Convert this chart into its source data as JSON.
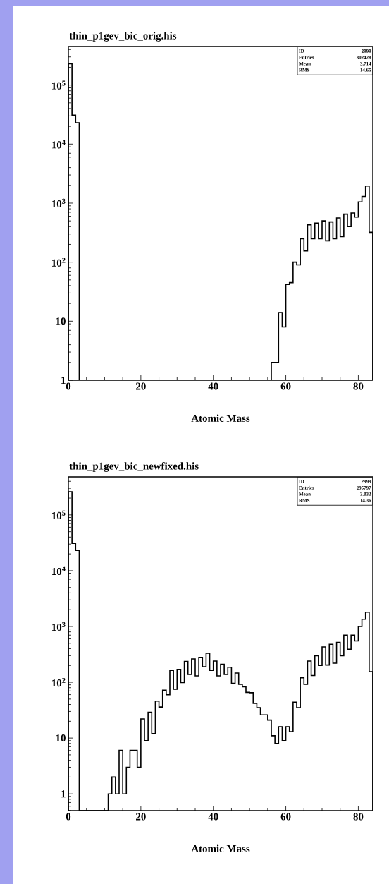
{
  "chart_data": [
    {
      "type": "histogram",
      "title": "thin_p1gev_bic_orig.his",
      "xlabel": "Atomic Mass",
      "color": "#000000",
      "log": true,
      "bins": [
        0,
        1,
        2,
        3,
        4,
        5,
        6,
        7,
        8,
        9,
        10,
        11,
        12,
        13,
        14,
        15,
        16,
        17,
        18,
        19,
        20,
        21,
        22,
        23,
        24,
        25,
        26,
        27,
        28,
        29,
        30,
        31,
        32,
        33,
        34,
        35,
        36,
        37,
        38,
        39,
        40,
        41,
        42,
        43,
        44,
        45,
        46,
        47,
        48,
        49,
        50,
        51,
        52,
        53,
        54,
        55,
        56,
        57,
        58,
        59,
        60,
        61,
        62,
        63,
        64,
        65,
        66,
        67,
        68,
        69,
        70,
        71,
        72,
        73,
        74,
        75,
        76,
        77,
        78,
        79,
        80,
        81,
        82,
        83,
        84
      ],
      "values": [
        230000,
        31000,
        23000,
        null,
        null,
        null,
        null,
        null,
        null,
        null,
        null,
        null,
        null,
        null,
        null,
        null,
        null,
        null,
        null,
        null,
        null,
        null,
        null,
        null,
        null,
        null,
        null,
        null,
        null,
        null,
        null,
        null,
        null,
        null,
        null,
        null,
        null,
        null,
        null,
        null,
        null,
        null,
        null,
        null,
        null,
        null,
        null,
        null,
        null,
        null,
        null,
        null,
        null,
        null,
        null,
        null,
        2,
        2,
        14,
        8,
        42,
        45,
        100,
        90,
        250,
        155,
        430,
        250,
        460,
        250,
        500,
        230,
        480,
        250,
        560,
        270,
        650,
        400,
        680,
        580,
        1050,
        1300,
        1950,
        320
      ],
      "xlim": [
        0,
        84
      ],
      "xticks": [
        0,
        20,
        40,
        60,
        80
      ],
      "ylim": [
        1,
        450000
      ],
      "yticks": [
        1,
        10,
        {
          "value": 100,
          "label": "10$^{2}$"
        },
        {
          "value": 1000,
          "label": "10$^{3}$"
        },
        {
          "value": 10000,
          "label": "10$^{4}$"
        },
        {
          "value": 100000,
          "label": "10$^{5}$"
        }
      ],
      "annotations": [
        "ID",
        "2999",
        "Entries",
        "302428",
        "Mean",
        "3.714",
        "RMS",
        "14.65"
      ]
    },
    {
      "type": "histogram",
      "title": "thin_p1gev_bic_newfixed.his",
      "xlabel": "Atomic Mass",
      "color": "#000000",
      "log": true,
      "bins": [
        0,
        1,
        2,
        3,
        4,
        5,
        6,
        7,
        8,
        9,
        10,
        11,
        12,
        13,
        14,
        15,
        16,
        17,
        18,
        19,
        20,
        21,
        22,
        23,
        24,
        25,
        26,
        27,
        28,
        29,
        30,
        31,
        32,
        33,
        34,
        35,
        36,
        37,
        38,
        39,
        40,
        41,
        42,
        43,
        44,
        45,
        46,
        47,
        48,
        49,
        50,
        51,
        52,
        53,
        54,
        55,
        56,
        57,
        58,
        59,
        60,
        61,
        62,
        63,
        64,
        65,
        66,
        67,
        68,
        69,
        70,
        71,
        72,
        73,
        74,
        75,
        76,
        77,
        78,
        79,
        80,
        81,
        82,
        83,
        84
      ],
      "values": [
        260000,
        31000,
        23000,
        null,
        null,
        null,
        null,
        null,
        null,
        null,
        null,
        1,
        2,
        1,
        6,
        1,
        3,
        6,
        6,
        3,
        22,
        9,
        29,
        12,
        46,
        36,
        72,
        60,
        164,
        75,
        170,
        99,
        237,
        138,
        262,
        130,
        280,
        190,
        330,
        164,
        240,
        130,
        210,
        138,
        186,
        96,
        146,
        92,
        83,
        66,
        65,
        42,
        35,
        26,
        26,
        21,
        11,
        8,
        16,
        9,
        16,
        13,
        44,
        35,
        120,
        92,
        240,
        132,
        300,
        200,
        430,
        204,
        480,
        220,
        520,
        300,
        700,
        390,
        700,
        550,
        1000,
        1350,
        1800,
        155
      ],
      "xlim": [
        0,
        84
      ],
      "xticks": [
        0,
        20,
        40,
        60,
        80
      ],
      "ylim": [
        0.5,
        480000
      ],
      "yticks": [
        1,
        10,
        {
          "value": 100,
          "label": "10$^{2}$"
        },
        {
          "value": 1000,
          "label": "10$^{3}$"
        },
        {
          "value": 10000,
          "label": "10$^{4}$"
        },
        {
          "value": 100000,
          "label": "10$^{5}$"
        }
      ],
      "annotations": [
        "ID",
        "2999",
        "Entries",
        "295797",
        "Mean",
        "3.832",
        "RMS",
        "14.36"
      ]
    }
  ]
}
